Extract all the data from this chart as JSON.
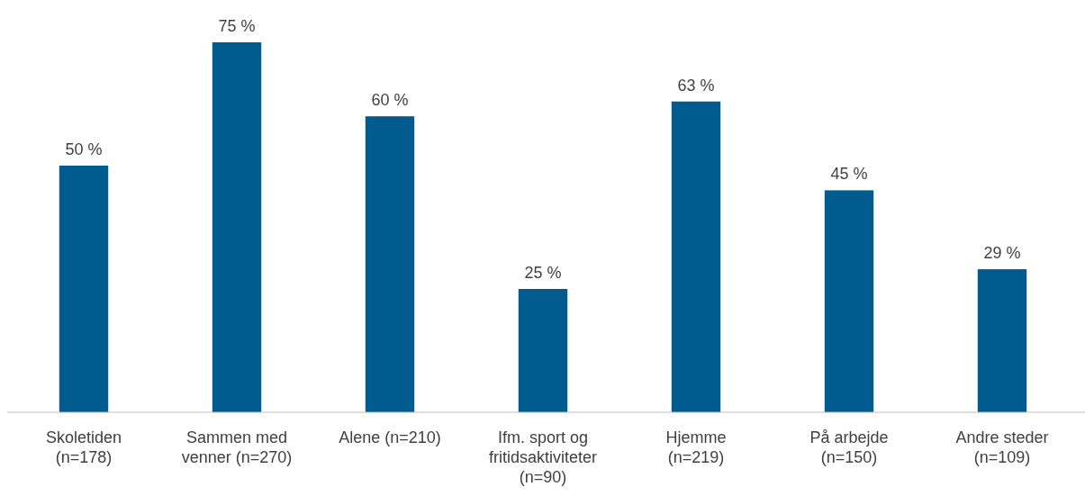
{
  "chart_data": {
    "type": "bar",
    "categories": [
      "Skoletiden (n=178)",
      "Sammen med venner (n=270)",
      "Alene (n=210)",
      "Ifm. sport og fritidsaktiviteter (n=90)",
      "Hjemme (n=219)",
      "På arbejde (n=150)",
      "Andre steder (n=109)"
    ],
    "values": [
      50,
      75,
      60,
      25,
      63,
      45,
      29
    ],
    "value_labels": [
      "50 %",
      "75 %",
      "60 %",
      "25 %",
      "63 %",
      "45 %",
      "29 %"
    ],
    "color": "#005b8e"
  }
}
